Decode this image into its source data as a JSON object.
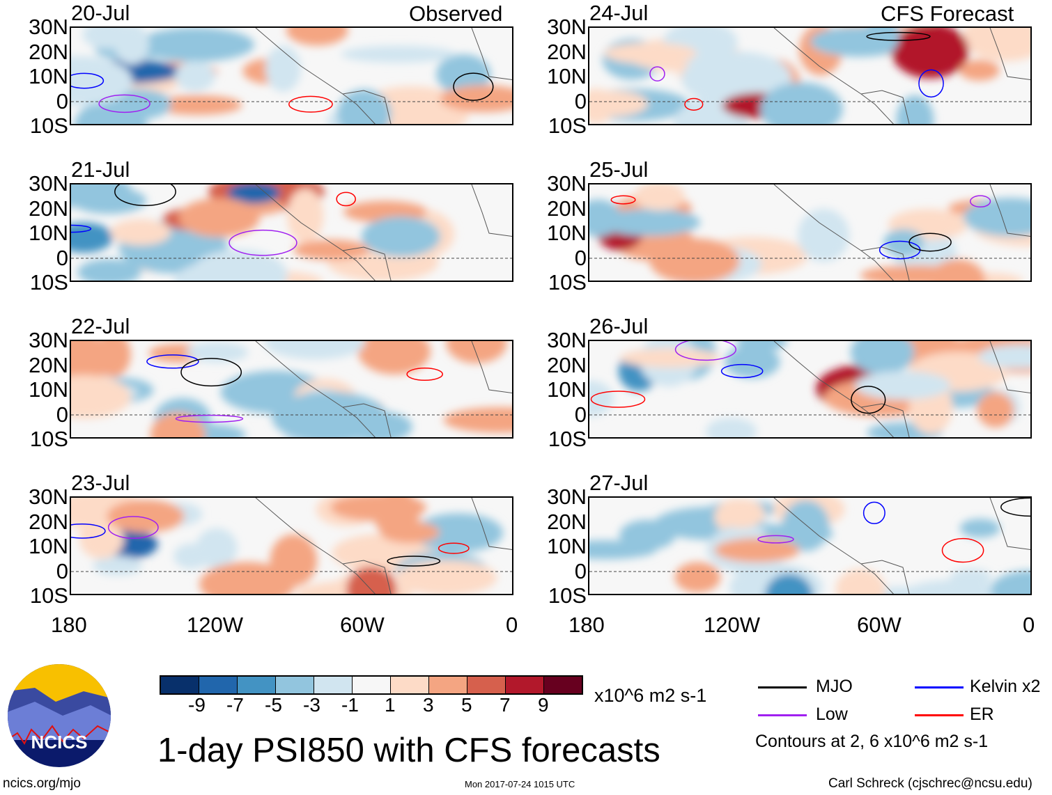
{
  "header": {
    "observed_label": "Observed",
    "forecast_label": "CFS Forecast"
  },
  "panels": [
    {
      "date": "20-Jul",
      "group": "observed"
    },
    {
      "date": "21-Jul",
      "group": "observed"
    },
    {
      "date": "22-Jul",
      "group": "observed"
    },
    {
      "date": "23-Jul",
      "group": "observed"
    },
    {
      "date": "24-Jul",
      "group": "forecast"
    },
    {
      "date": "25-Jul",
      "group": "forecast"
    },
    {
      "date": "26-Jul",
      "group": "forecast"
    },
    {
      "date": "27-Jul",
      "group": "forecast"
    }
  ],
  "lat_labels": [
    "30N",
    "20N",
    "10N",
    "0",
    "10S"
  ],
  "lon_labels": [
    "180",
    "120W",
    "60W",
    "0"
  ],
  "colorbar": {
    "colors": [
      "#08306b",
      "#2166ac",
      "#4393c3",
      "#92c5de",
      "#d1e5f0",
      "#f7f7f7",
      "#fddbc7",
      "#f4a582",
      "#d6604d",
      "#b2182b",
      "#67001f"
    ],
    "ticks": [
      "-9",
      "-7",
      "-5",
      "-3",
      "-1",
      "1",
      "3",
      "5",
      "7",
      "9"
    ],
    "units": "x10^6 m2 s-1"
  },
  "legend": {
    "items": [
      {
        "label": "MJO",
        "color": "#000000"
      },
      {
        "label": "Kelvin x2",
        "color": "#0000ff"
      },
      {
        "label": "Low",
        "color": "#a020f0"
      },
      {
        "label": "ER",
        "color": "#ff0000"
      }
    ],
    "contours_note": "Contours at 2, 6 x10^6 m2 s-1"
  },
  "title": "1-day PSI850 with CFS forecasts",
  "logo_text": "NCICS",
  "footer": {
    "url": "ncics.org/mjo",
    "timestamp": "Mon 2017-07-24 1015 UTC",
    "credit": "Carl Schreck (cjschrec@ncsu.edu)"
  }
}
